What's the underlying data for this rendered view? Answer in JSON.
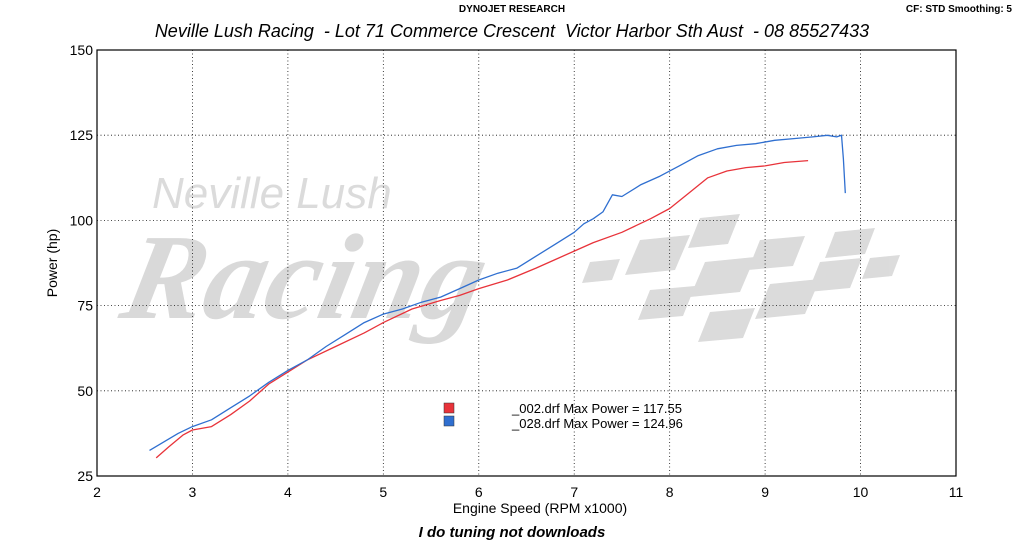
{
  "header": {
    "brand": "DYNOJET RESEARCH",
    "settings": "CF: STD  Smoothing: 5"
  },
  "watermark": {
    "line1": "Neville Lush",
    "line2": "Racing"
  },
  "footer": "I do tuning not downloads",
  "colors": {
    "run_002": "#e8333a",
    "run_028": "#2f6fd0"
  },
  "chart_data": {
    "type": "line",
    "title": "Neville Lush Racing  - Lot 71 Commerce Crescent  Victor Harbor Sth Aust  - 08 85527433",
    "xlabel": "Engine Speed (RPM x1000)",
    "ylabel": "Power (hp)",
    "xlim": [
      2,
      11
    ],
    "ylim": [
      25,
      150
    ],
    "xticks": [
      "2",
      "3",
      "4",
      "5",
      "6",
      "7",
      "8",
      "9",
      "10",
      "11"
    ],
    "yticks": [
      "25",
      "50",
      "75",
      "100",
      "125",
      "150"
    ],
    "grid": true,
    "legend_position": "center",
    "series": [
      {
        "name": "_002.drf Max Power = 117.55",
        "color": "#e8333a",
        "x": [
          2.62,
          2.75,
          2.9,
          3.0,
          3.2,
          3.4,
          3.6,
          3.8,
          4.0,
          4.2,
          4.5,
          4.8,
          5.0,
          5.3,
          5.6,
          5.8,
          6.0,
          6.3,
          6.6,
          6.8,
          7.0,
          7.2,
          7.5,
          7.8,
          8.0,
          8.2,
          8.4,
          8.6,
          8.8,
          9.0,
          9.2,
          9.45
        ],
        "y": [
          30.3,
          33.5,
          37.0,
          38.5,
          39.5,
          43.0,
          47.0,
          52.0,
          55.5,
          59.0,
          63.0,
          67.0,
          70.0,
          74.0,
          76.5,
          78.0,
          80.0,
          82.5,
          86.0,
          88.5,
          91.0,
          93.5,
          96.5,
          100.5,
          103.5,
          108.0,
          112.5,
          114.5,
          115.5,
          116.0,
          117.0,
          117.55
        ]
      },
      {
        "name": "_028.drf Max Power = 124.96",
        "color": "#2f6fd0",
        "x": [
          2.55,
          2.7,
          2.85,
          3.0,
          3.2,
          3.4,
          3.6,
          3.8,
          4.0,
          4.2,
          4.4,
          4.6,
          4.8,
          5.0,
          5.2,
          5.4,
          5.6,
          5.8,
          6.0,
          6.2,
          6.4,
          6.6,
          6.8,
          7.0,
          7.1,
          7.2,
          7.3,
          7.4,
          7.5,
          7.7,
          7.9,
          8.1,
          8.3,
          8.5,
          8.7,
          8.9,
          9.1,
          9.3,
          9.5,
          9.65,
          9.75,
          9.8,
          9.82,
          9.84
        ],
        "y": [
          32.5,
          35.0,
          37.5,
          39.5,
          41.5,
          45.0,
          48.5,
          52.5,
          56.0,
          59.0,
          63.0,
          66.5,
          70.0,
          72.5,
          74.0,
          76.0,
          77.5,
          80.0,
          82.5,
          84.5,
          86.0,
          89.5,
          93.0,
          96.5,
          99.0,
          100.5,
          102.5,
          107.5,
          107.0,
          110.5,
          113.0,
          116.0,
          119.0,
          121.0,
          122.0,
          122.5,
          123.5,
          124.0,
          124.5,
          124.96,
          124.5,
          125.0,
          118.0,
          108.0
        ]
      }
    ]
  }
}
